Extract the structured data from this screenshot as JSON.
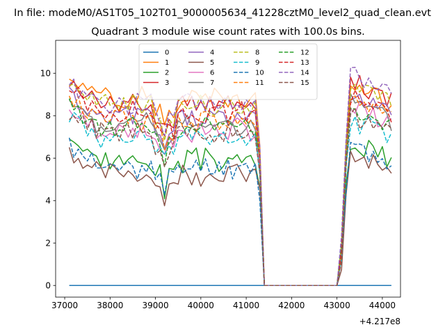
{
  "chart_data": {
    "type": "line",
    "suptitle": "In file: modeM0/AS1T05_102T01_9000005634_41228cztM0_level2_quad_clean.evt",
    "title": "Quadrant 3 module wise count rates with 100.0s bins.",
    "xlabel": "",
    "ylabel": "",
    "x_offset_label": "+4.217e8",
    "xlim": [
      36800,
      44400
    ],
    "ylim": [
      -0.55,
      11.55
    ],
    "xticks": [
      37000,
      38000,
      39000,
      40000,
      41000,
      42000,
      43000,
      44000
    ],
    "yticks": [
      0,
      2,
      4,
      6,
      8,
      10
    ],
    "legend_position": "upper-center",
    "legend_columns": 4,
    "grid": false,
    "x_start": 37100,
    "x_step": 100,
    "gap_start_index": 42,
    "gap_end_index": 60,
    "series": [
      {
        "name": "0",
        "style": "solid",
        "color": "#1f77b4",
        "level_a": 0,
        "level_b": 0,
        "seed": 1
      },
      {
        "name": "1",
        "style": "solid",
        "color": "#ff7f0e",
        "level_a": 8.9,
        "level_b": 8.9,
        "seed": 2
      },
      {
        "name": "2",
        "style": "solid",
        "color": "#2ca02c",
        "level_a": 5.9,
        "level_b": 6.2,
        "seed": 3
      },
      {
        "name": "3",
        "style": "solid",
        "color": "#d62728",
        "level_a": 8.6,
        "level_b": 9.0,
        "seed": 4
      },
      {
        "name": "4",
        "style": "solid",
        "color": "#9467bd",
        "level_a": 7.9,
        "level_b": 8.6,
        "seed": 5
      },
      {
        "name": "5",
        "style": "solid",
        "color": "#8c564b",
        "level_a": 5.3,
        "level_b": 5.6,
        "seed": 6
      },
      {
        "name": "6",
        "style": "solid",
        "color": "#e377c2",
        "level_a": 7.3,
        "level_b": 7.9,
        "seed": 7
      },
      {
        "name": "7",
        "style": "solid",
        "color": "#7f7f7f",
        "level_a": 7.6,
        "level_b": 8.0,
        "seed": 8
      },
      {
        "name": "8",
        "style": "dashed",
        "color": "#bcbd22",
        "level_a": 8.5,
        "level_b": 8.9,
        "seed": 9
      },
      {
        "name": "9",
        "style": "dashed",
        "color": "#17becf",
        "level_a": 7.0,
        "level_b": 7.4,
        "seed": 10
      },
      {
        "name": "10",
        "style": "dashed",
        "color": "#1f77b4",
        "level_a": 5.6,
        "level_b": 6.1,
        "seed": 11
      },
      {
        "name": "11",
        "style": "dashed",
        "color": "#ff7f0e",
        "level_a": 7.8,
        "level_b": 8.4,
        "seed": 12
      },
      {
        "name": "12",
        "style": "dashed",
        "color": "#2ca02c",
        "level_a": 7.5,
        "level_b": 7.8,
        "seed": 13
      },
      {
        "name": "13",
        "style": "dashed",
        "color": "#d62728",
        "level_a": 8.1,
        "level_b": 8.3,
        "seed": 14
      },
      {
        "name": "14",
        "style": "dashed",
        "color": "#9467bd",
        "level_a": 8.6,
        "level_b": 9.4,
        "seed": 15
      },
      {
        "name": "15",
        "style": "dashed",
        "color": "#8c564b",
        "level_a": 7.2,
        "level_b": 7.5,
        "seed": 16
      }
    ]
  }
}
